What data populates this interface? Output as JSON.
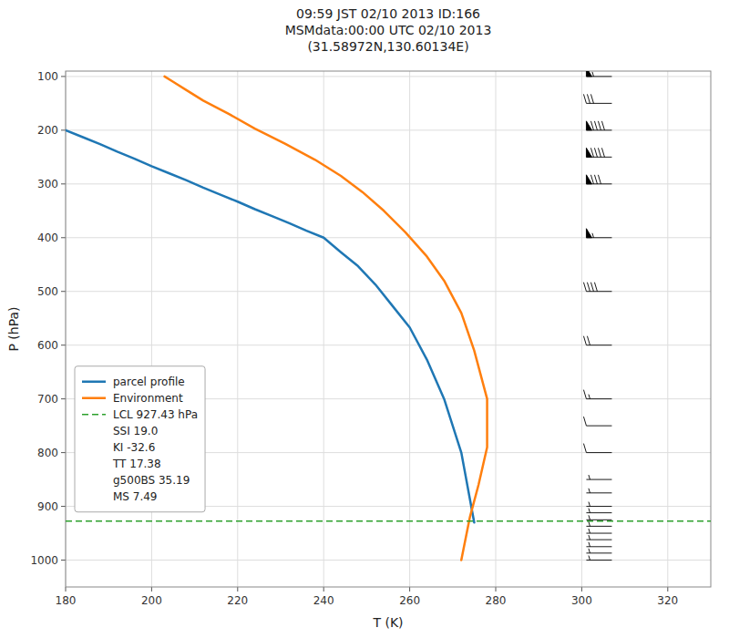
{
  "chart_data": {
    "type": "line",
    "title": "09:59 JST 02/10 2013  ID:166\nMSMdata:00:00 UTC 02/10 2013\n(31.58972N,130.60134E)",
    "x_label": "T (K)",
    "y_label": "P (hPa)",
    "xlim": [
      180,
      330
    ],
    "ylim": [
      1050,
      90
    ],
    "xticks": [
      180,
      200,
      220,
      240,
      260,
      280,
      300,
      320
    ],
    "yticks": [
      100,
      200,
      300,
      400,
      500,
      600,
      700,
      800,
      900,
      1000
    ],
    "grid": true,
    "legend": "lower left",
    "series": [
      {
        "name": "parcel profile",
        "color": "#1f77b4",
        "line_style": "solid",
        "x": [
          180,
          184,
          188,
          192,
          196,
          200,
          204,
          208,
          212,
          216,
          220,
          224,
          228,
          232,
          236,
          240,
          244,
          248,
          252,
          256,
          260,
          264,
          268,
          272,
          275
        ],
        "values": [
          200,
          213,
          226,
          240,
          253,
          267,
          280,
          293,
          307,
          320,
          333,
          347,
          360,
          373,
          387,
          400,
          427,
          453,
          487,
          527,
          567,
          627,
          700,
          800,
          930
        ]
      },
      {
        "name": "Environment",
        "color": "#ff7f0e",
        "line_style": "solid",
        "x": [
          203,
          205,
          208,
          212,
          218,
          224,
          231,
          238,
          244,
          249,
          254,
          259,
          264,
          268,
          272,
          275,
          278,
          278,
          276,
          274,
          272
        ],
        "values": [
          100,
          110,
          125,
          145,
          170,
          197,
          225,
          255,
          285,
          315,
          350,
          390,
          435,
          480,
          540,
          610,
          700,
          790,
          860,
          920,
          1000
        ]
      },
      {
        "name": "LCL 927.43 hPa",
        "type": "hline",
        "color": "#2ca02c",
        "line_style": "dashed",
        "values": [
          927.43
        ]
      }
    ],
    "legend_entries": [
      "SSI 19.0",
      "KI -32.6",
      "TT 17.38",
      "g500BS 35.19",
      "MS 7.49"
    ],
    "wind_barbs": {
      "x": [
        307,
        307,
        307,
        307,
        307,
        307,
        307,
        307,
        307,
        307,
        307,
        307,
        307,
        307,
        307,
        307,
        307,
        307,
        307,
        307,
        307,
        307
      ],
      "values": [
        100,
        150,
        200,
        250,
        300,
        400,
        500,
        600,
        700,
        750,
        800,
        850,
        875,
        900,
        912,
        925,
        937,
        950,
        962,
        975,
        987,
        1000
      ],
      "u": [
        55,
        30,
        90,
        90,
        80,
        55,
        40,
        20,
        15,
        10,
        8,
        5,
        5,
        5,
        5,
        5,
        5,
        5,
        5,
        5,
        5,
        5
      ],
      "v": [
        0,
        0,
        0,
        0,
        0,
        0,
        0,
        0,
        0,
        0,
        0,
        0,
        0,
        0,
        0,
        0,
        0,
        0,
        0,
        0,
        0,
        0
      ]
    }
  }
}
